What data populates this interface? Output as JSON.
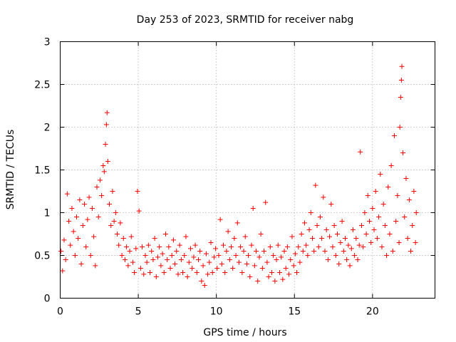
{
  "chart_data": {
    "type": "scatter",
    "title": "Day 253 of 2023, SRMTID for receiver nabg",
    "xlabel": "GPS time / hours",
    "ylabel": "SRMTID / TECUs",
    "xlim": [
      0,
      24
    ],
    "ylim": [
      0,
      3
    ],
    "xticks": [
      0,
      5,
      10,
      15,
      20
    ],
    "yticks": [
      0,
      0.5,
      1,
      1.5,
      2,
      2.5,
      3
    ],
    "xtick_labels": [
      "0",
      "5",
      "10",
      "15",
      "20"
    ],
    "ytick_labels": [
      "0",
      "0.5",
      "1",
      "1.5",
      "2",
      "2.5",
      "3"
    ],
    "grid": true,
    "marker": "+",
    "color": "#ff0000",
    "series": [
      {
        "name": "SRMTID",
        "points": [
          [
            0.05,
            0.55
          ],
          [
            0.15,
            0.32
          ],
          [
            0.25,
            0.68
          ],
          [
            0.35,
            0.45
          ],
          [
            0.45,
            1.22
          ],
          [
            0.55,
            0.9
          ],
          [
            0.65,
            0.62
          ],
          [
            0.75,
            1.05
          ],
          [
            0.85,
            0.78
          ],
          [
            0.95,
            0.5
          ],
          [
            1.05,
            0.95
          ],
          [
            1.15,
            0.7
          ],
          [
            1.25,
            1.15
          ],
          [
            1.35,
            0.4
          ],
          [
            1.45,
            0.85
          ],
          [
            1.55,
            1.1
          ],
          [
            1.65,
            0.6
          ],
          [
            1.75,
            0.92
          ],
          [
            1.85,
            1.18
          ],
          [
            1.95,
            0.5
          ],
          [
            2.05,
            1.05
          ],
          [
            2.15,
            0.72
          ],
          [
            2.25,
            0.38
          ],
          [
            2.35,
            1.3
          ],
          [
            2.45,
            0.95
          ],
          [
            2.55,
            1.38
          ],
          [
            2.65,
            1.2
          ],
          [
            2.75,
            1.55
          ],
          [
            2.82,
            1.48
          ],
          [
            2.9,
            1.8
          ],
          [
            2.96,
            2.03
          ],
          [
            3.0,
            2.17
          ],
          [
            3.05,
            1.6
          ],
          [
            3.15,
            1.1
          ],
          [
            3.25,
            0.85
          ],
          [
            3.35,
            1.25
          ],
          [
            3.45,
            0.9
          ],
          [
            3.55,
            1.0
          ],
          [
            3.65,
            0.75
          ],
          [
            3.75,
            0.62
          ],
          [
            3.85,
            0.88
          ],
          [
            3.95,
            0.5
          ],
          [
            4.05,
            0.7
          ],
          [
            4.15,
            0.45
          ],
          [
            4.25,
            0.6
          ],
          [
            4.35,
            0.38
          ],
          [
            4.45,
            0.55
          ],
          [
            4.55,
            0.72
          ],
          [
            4.65,
            0.42
          ],
          [
            4.75,
            0.3
          ],
          [
            4.85,
            0.58
          ],
          [
            4.95,
            1.25
          ],
          [
            5.05,
            1.02
          ],
          [
            5.15,
            0.35
          ],
          [
            5.25,
            0.6
          ],
          [
            5.35,
            0.28
          ],
          [
            5.45,
            0.5
          ],
          [
            5.55,
            0.42
          ],
          [
            5.65,
            0.62
          ],
          [
            5.75,
            0.3
          ],
          [
            5.85,
            0.55
          ],
          [
            5.95,
            0.45
          ],
          [
            6.05,
            0.7
          ],
          [
            6.15,
            0.25
          ],
          [
            6.25,
            0.48
          ],
          [
            6.35,
            0.6
          ],
          [
            6.45,
            0.38
          ],
          [
            6.55,
            0.52
          ],
          [
            6.65,
            0.3
          ],
          [
            6.75,
            0.75
          ],
          [
            6.85,
            0.45
          ],
          [
            6.95,
            0.6
          ],
          [
            7.05,
            0.35
          ],
          [
            7.15,
            0.5
          ],
          [
            7.25,
            0.68
          ],
          [
            7.35,
            0.4
          ],
          [
            7.45,
            0.55
          ],
          [
            7.55,
            0.28
          ],
          [
            7.65,
            0.62
          ],
          [
            7.75,
            0.45
          ],
          [
            7.85,
            0.3
          ],
          [
            7.95,
            0.5
          ],
          [
            8.05,
            0.72
          ],
          [
            8.15,
            0.25
          ],
          [
            8.25,
            0.42
          ],
          [
            8.35,
            0.58
          ],
          [
            8.45,
            0.35
          ],
          [
            8.55,
            0.48
          ],
          [
            8.65,
            0.62
          ],
          [
            8.75,
            0.3
          ],
          [
            8.85,
            0.45
          ],
          [
            8.95,
            0.55
          ],
          [
            9.05,
            0.2
          ],
          [
            9.15,
            0.38
          ],
          [
            9.25,
            0.15
          ],
          [
            9.35,
            0.52
          ],
          [
            9.45,
            0.28
          ],
          [
            9.55,
            0.42
          ],
          [
            9.65,
            0.65
          ],
          [
            9.75,
            0.3
          ],
          [
            9.85,
            0.48
          ],
          [
            9.95,
            0.58
          ],
          [
            10.05,
            0.35
          ],
          [
            10.15,
            0.5
          ],
          [
            10.25,
            0.92
          ],
          [
            10.35,
            0.4
          ],
          [
            10.45,
            0.62
          ],
          [
            10.55,
            0.3
          ],
          [
            10.65,
            0.55
          ],
          [
            10.75,
            0.78
          ],
          [
            10.85,
            0.45
          ],
          [
            10.95,
            0.6
          ],
          [
            11.05,
            0.35
          ],
          [
            11.15,
            0.7
          ],
          [
            11.25,
            0.5
          ],
          [
            11.35,
            0.88
          ],
          [
            11.45,
            0.42
          ],
          [
            11.55,
            0.6
          ],
          [
            11.65,
            0.3
          ],
          [
            11.75,
            0.55
          ],
          [
            11.85,
            0.72
          ],
          [
            11.95,
            0.4
          ],
          [
            12.05,
            0.5
          ],
          [
            12.15,
            0.25
          ],
          [
            12.25,
            0.62
          ],
          [
            12.35,
            1.05
          ],
          [
            12.45,
            0.38
          ],
          [
            12.55,
            0.55
          ],
          [
            12.65,
            0.2
          ],
          [
            12.75,
            0.48
          ],
          [
            12.85,
            0.75
          ],
          [
            12.95,
            0.35
          ],
          [
            13.05,
            0.55
          ],
          [
            13.15,
            1.12
          ],
          [
            13.25,
            0.42
          ],
          [
            13.35,
            0.25
          ],
          [
            13.45,
            0.6
          ],
          [
            13.55,
            0.3
          ],
          [
            13.65,
            0.5
          ],
          [
            13.75,
            0.2
          ],
          [
            13.85,
            0.45
          ],
          [
            13.95,
            0.62
          ],
          [
            14.05,
            0.3
          ],
          [
            14.15,
            0.48
          ],
          [
            14.25,
            0.22
          ],
          [
            14.35,
            0.55
          ],
          [
            14.45,
            0.35
          ],
          [
            14.55,
            0.6
          ],
          [
            14.65,
            0.28
          ],
          [
            14.75,
            0.45
          ],
          [
            14.85,
            0.72
          ],
          [
            14.95,
            0.38
          ],
          [
            15.05,
            0.52
          ],
          [
            15.15,
            0.3
          ],
          [
            15.25,
            0.6
          ],
          [
            15.35,
            0.42
          ],
          [
            15.45,
            0.75
          ],
          [
            15.55,
            0.55
          ],
          [
            15.65,
            0.88
          ],
          [
            15.75,
            0.62
          ],
          [
            15.85,
            0.5
          ],
          [
            15.95,
            0.8
          ],
          [
            16.05,
            1.0
          ],
          [
            16.15,
            0.7
          ],
          [
            16.25,
            0.55
          ],
          [
            16.35,
            1.32
          ],
          [
            16.45,
            0.85
          ],
          [
            16.55,
            0.6
          ],
          [
            16.65,
            0.95
          ],
          [
            16.75,
            0.7
          ],
          [
            16.85,
            1.18
          ],
          [
            16.95,
            0.55
          ],
          [
            17.05,
            0.8
          ],
          [
            17.15,
            0.45
          ],
          [
            17.25,
            0.72
          ],
          [
            17.35,
            1.1
          ],
          [
            17.45,
            0.6
          ],
          [
            17.55,
            0.85
          ],
          [
            17.65,
            0.5
          ],
          [
            17.75,
            0.75
          ],
          [
            17.85,
            0.4
          ],
          [
            17.95,
            0.65
          ],
          [
            18.05,
            0.9
          ],
          [
            18.15,
            0.55
          ],
          [
            18.25,
            0.7
          ],
          [
            18.35,
            0.45
          ],
          [
            18.45,
            0.62
          ],
          [
            18.55,
            0.38
          ],
          [
            18.65,
            0.58
          ],
          [
            18.75,
            0.8
          ],
          [
            18.85,
            0.5
          ],
          [
            18.95,
            0.7
          ],
          [
            19.05,
            0.45
          ],
          [
            19.15,
            0.62
          ],
          [
            19.22,
            1.71
          ],
          [
            19.3,
            0.85
          ],
          [
            19.4,
            0.6
          ],
          [
            19.5,
            1.0
          ],
          [
            19.6,
            0.75
          ],
          [
            19.7,
            1.2
          ],
          [
            19.8,
            0.9
          ],
          [
            19.9,
            0.65
          ],
          [
            20.0,
            1.05
          ],
          [
            20.1,
            0.8
          ],
          [
            20.2,
            1.25
          ],
          [
            20.3,
            0.7
          ],
          [
            20.4,
            0.95
          ],
          [
            20.5,
            1.45
          ],
          [
            20.6,
            0.6
          ],
          [
            20.7,
            1.1
          ],
          [
            20.8,
            0.85
          ],
          [
            20.9,
            0.5
          ],
          [
            21.0,
            1.3
          ],
          [
            21.1,
            0.75
          ],
          [
            21.2,
            1.55
          ],
          [
            21.3,
            0.55
          ],
          [
            21.4,
            1.9
          ],
          [
            21.5,
            0.9
          ],
          [
            21.6,
            1.2
          ],
          [
            21.7,
            0.65
          ],
          [
            21.75,
            2.0
          ],
          [
            21.8,
            2.35
          ],
          [
            21.85,
            2.55
          ],
          [
            21.88,
            2.71
          ],
          [
            21.95,
            1.7
          ],
          [
            22.05,
            0.95
          ],
          [
            22.15,
            1.4
          ],
          [
            22.25,
            0.7
          ],
          [
            22.35,
            1.15
          ],
          [
            22.45,
            0.55
          ],
          [
            22.55,
            0.85
          ],
          [
            22.65,
            1.25
          ],
          [
            22.75,
            0.65
          ],
          [
            22.8,
            1.0
          ]
        ]
      }
    ]
  }
}
